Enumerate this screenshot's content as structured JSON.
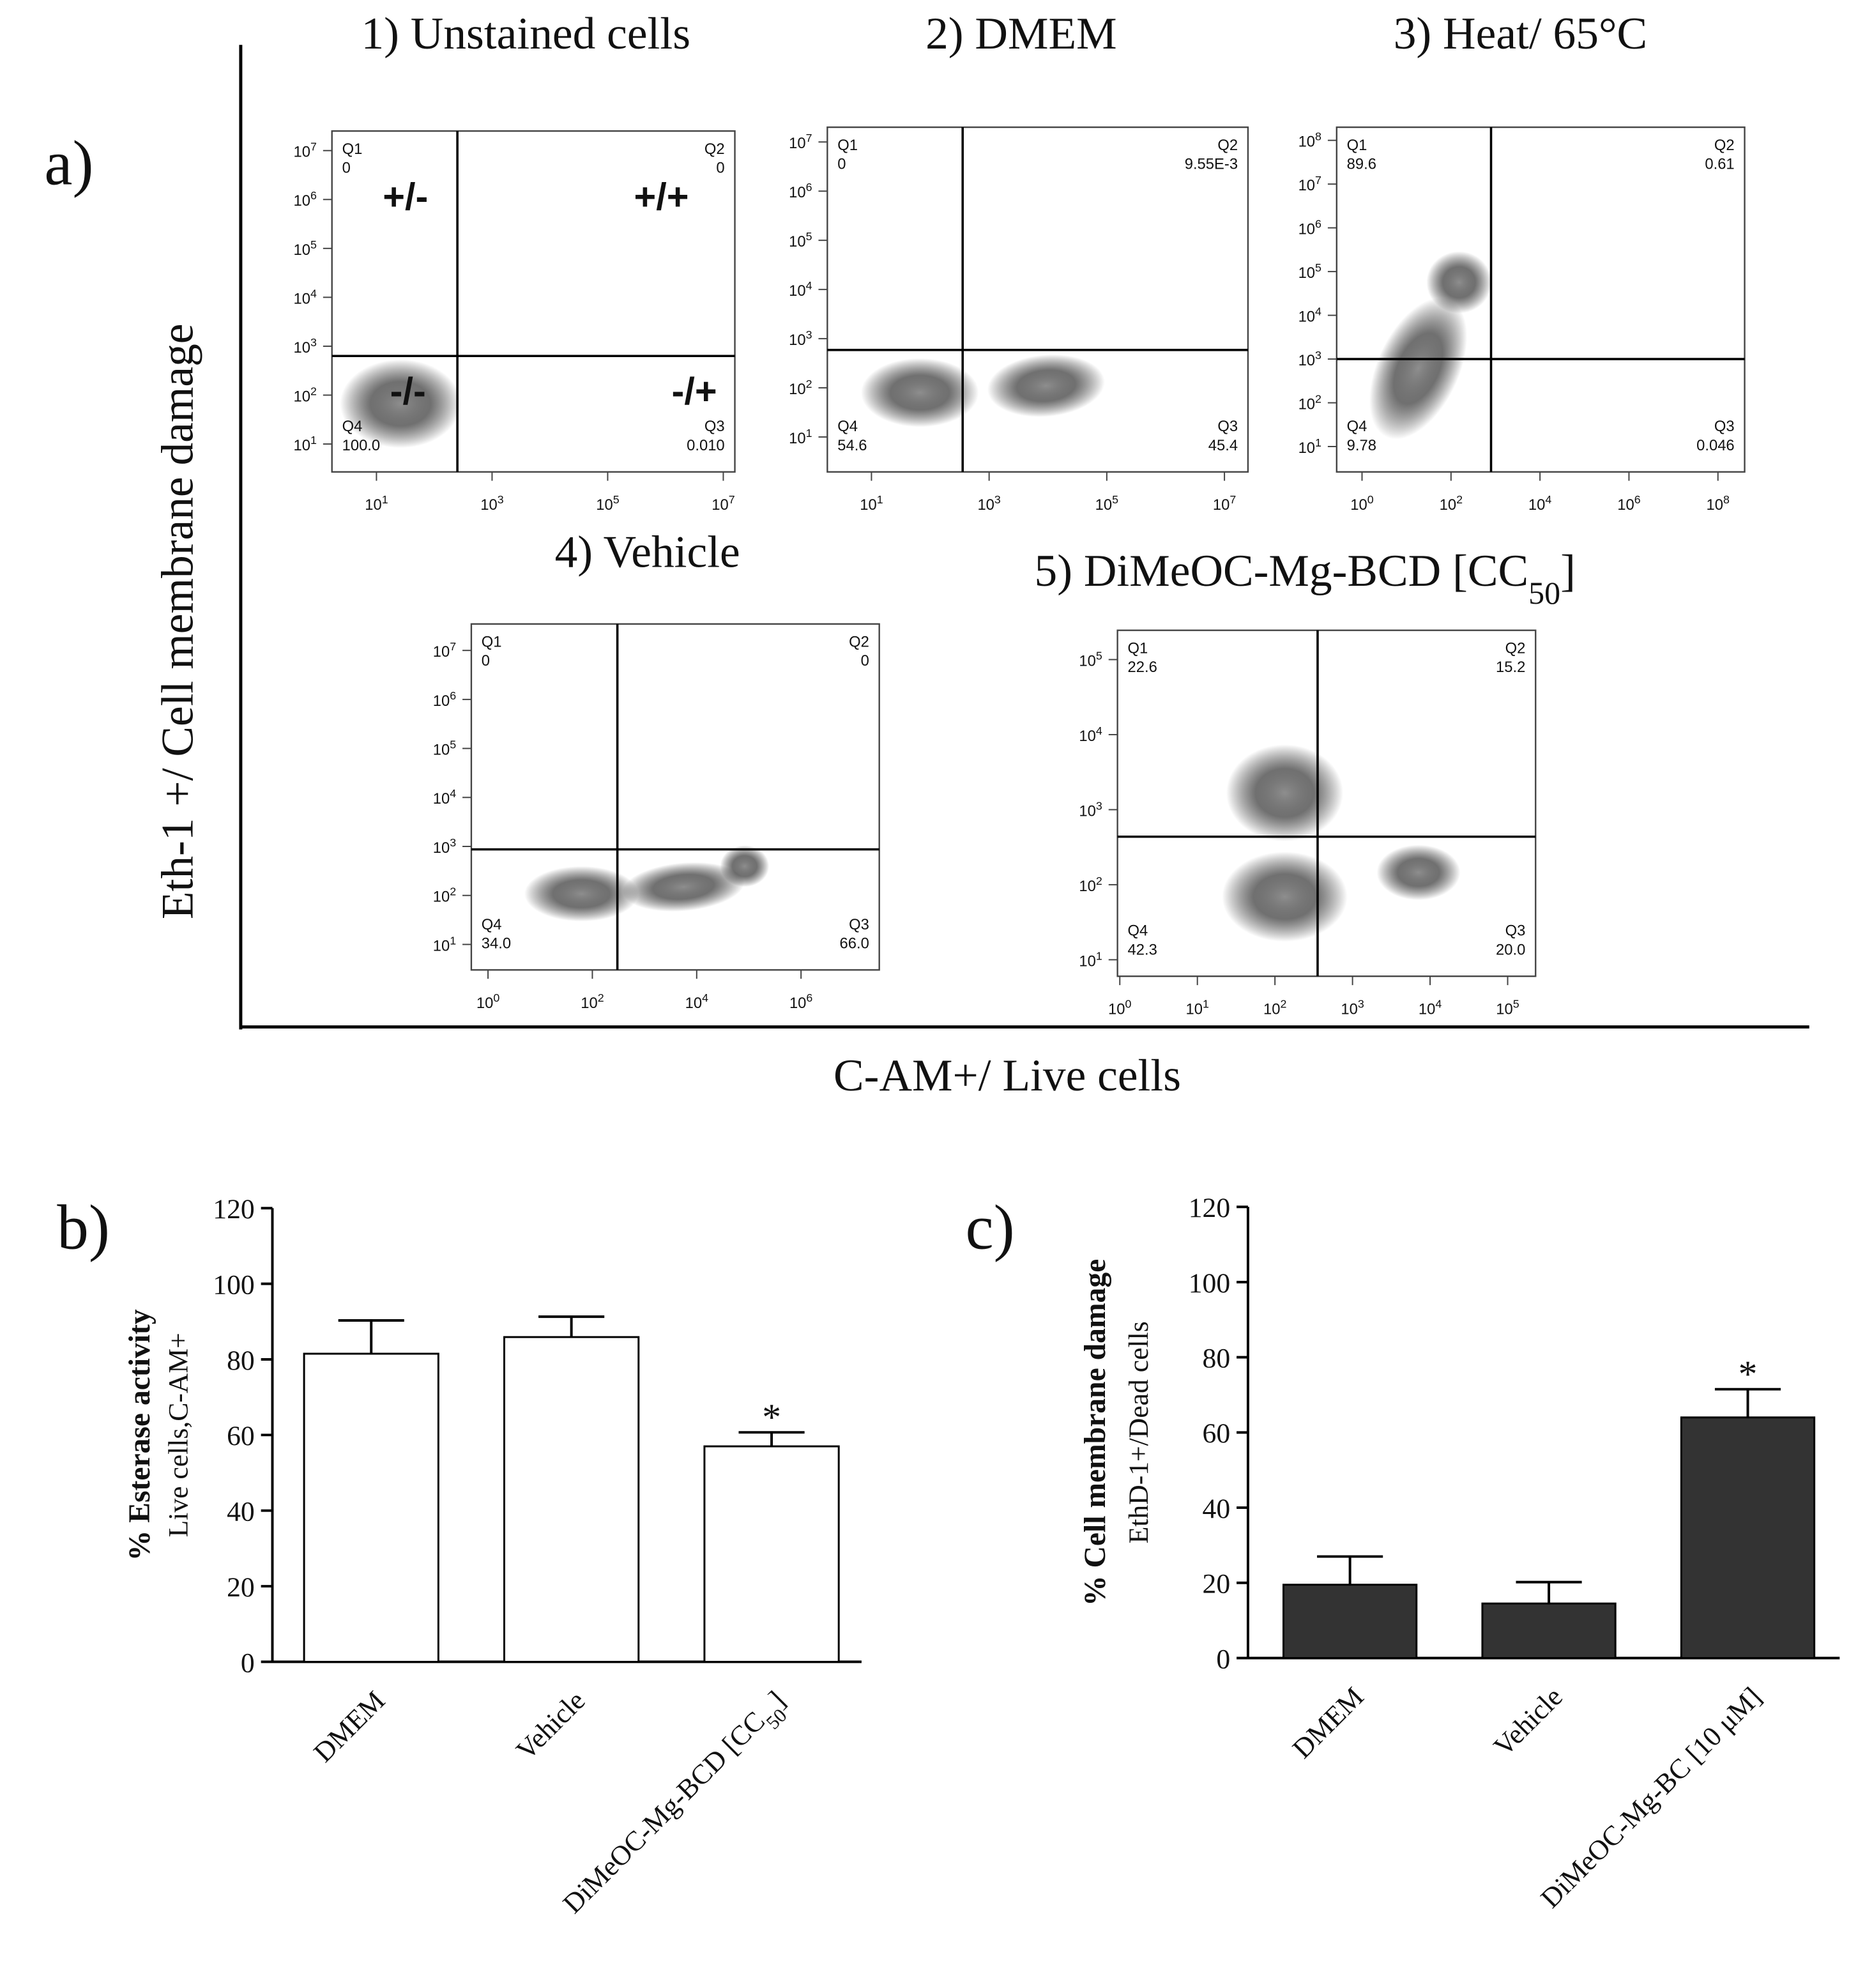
{
  "chart_data": [
    {
      "type": "flow",
      "panel_label": "a)",
      "ylabel": "Eth-1 +/ Cell membrane damage",
      "xlabel": "C-AM+/ Live cells",
      "tick_base": "10",
      "plots": [
        {
          "title": "1) Unstained cells",
          "xlim": [
            0.23,
            7.2
          ],
          "ylim": [
            0.43,
            7.4
          ],
          "xticks": [
            1,
            3,
            5,
            7
          ],
          "yticks": [
            1,
            2,
            3,
            4,
            5,
            6,
            7
          ],
          "gate": [
            2.4,
            2.8
          ],
          "quadrants": [
            {
              "name": "Q1",
              "value": 0
            },
            {
              "name": "Q2",
              "value": 0
            },
            {
              "name": "Q3",
              "value": 0.01,
              "label": "0.010"
            },
            {
              "name": "Q4",
              "value": 100,
              "label": "100.0"
            }
          ],
          "annotations": [
            "+/-",
            "+/+",
            "-/-",
            "-/+"
          ]
        },
        {
          "title": "2) DMEM",
          "xlim": [
            0.25,
            7.4
          ],
          "ylim": [
            0.29,
            7.3
          ],
          "xticks": [
            1,
            3,
            5,
            7
          ],
          "yticks": [
            1,
            2,
            3,
            4,
            5,
            6,
            7
          ],
          "gate": [
            2.55,
            2.77
          ],
          "quadrants": [
            {
              "name": "Q1",
              "value": 0
            },
            {
              "name": "Q2",
              "value": 0.00955,
              "label": "9.55E-3"
            },
            {
              "name": "Q3",
              "value": 45.4
            },
            {
              "name": "Q4",
              "value": 54.6
            }
          ]
        },
        {
          "title": "3) Heat/ 65°C",
          "xlim": [
            -0.57,
            8.6
          ],
          "ylim": [
            0.42,
            8.3
          ],
          "xticks": [
            0,
            2,
            4,
            6,
            8
          ],
          "yticks": [
            1,
            2,
            3,
            4,
            5,
            6,
            7,
            8
          ],
          "gate": [
            2.9,
            3.0
          ],
          "quadrants": [
            {
              "name": "Q1",
              "value": 89.6
            },
            {
              "name": "Q2",
              "value": 0.61
            },
            {
              "name": "Q3",
              "value": 0.046
            },
            {
              "name": "Q4",
              "value": 9.78
            }
          ]
        },
        {
          "title": "4) Vehicle",
          "xlim": [
            -0.32,
            7.5
          ],
          "ylim": [
            0.48,
            7.54
          ],
          "xticks": [
            0,
            2,
            4,
            6
          ],
          "yticks": [
            1,
            2,
            3,
            4,
            5,
            6,
            7
          ],
          "gate": [
            2.48,
            2.94
          ],
          "quadrants": [
            {
              "name": "Q1",
              "value": 0
            },
            {
              "name": "Q2",
              "value": 0
            },
            {
              "name": "Q3",
              "value": 66,
              "label": "66.0"
            },
            {
              "name": "Q4",
              "value": 34,
              "label": "34.0"
            }
          ]
        },
        {
          "title": "5) DiMeOC-Mg-BCD [CC50]",
          "xlim": [
            -0.03,
            5.36
          ],
          "ylim": [
            0.78,
            5.39
          ],
          "xticks": [
            0,
            1,
            2,
            3,
            4,
            5
          ],
          "yticks": [
            1,
            2,
            3,
            4,
            5
          ],
          "gate": [
            2.55,
            2.64
          ],
          "quadrants": [
            {
              "name": "Q1",
              "value": 22.6
            },
            {
              "name": "Q2",
              "value": 15.2
            },
            {
              "name": "Q3",
              "value": 20,
              "label": "20.0"
            },
            {
              "name": "Q4",
              "value": 42.3
            }
          ]
        }
      ]
    },
    {
      "type": "bar",
      "panel_label": "b)",
      "ylabel": [
        "% Esterase activity",
        "Live cells,C-AM+"
      ],
      "categories": [
        "DMEM",
        "Vehicle",
        "DiMeOC-Mg-BCD [CC50]"
      ],
      "values": [
        81.5,
        85.9,
        57
      ],
      "errors": [
        8.8,
        5.4,
        3.7
      ],
      "color": "#ffffff",
      "ylim": [
        0,
        120
      ],
      "yticks": [
        0,
        20,
        40,
        60,
        80,
        100,
        120
      ],
      "annotations": [
        {
          "text": "*",
          "index": 2
        }
      ]
    },
    {
      "type": "bar",
      "panel_label": "c)",
      "ylabel": [
        "% Cell membrane damage",
        "EthD-1+/Dead cells"
      ],
      "categories": [
        "DMEM",
        "Vehicle",
        "DiMeOC-Mg-BC [10 μM]"
      ],
      "values": [
        19.5,
        14.5,
        64
      ],
      "errors": [
        7.5,
        5.7,
        7.5
      ],
      "color": "#333333",
      "ylim": [
        0,
        120
      ],
      "yticks": [
        0,
        20,
        40,
        60,
        80,
        100,
        120
      ],
      "annotations": [
        {
          "text": "*",
          "index": 2
        }
      ]
    }
  ]
}
